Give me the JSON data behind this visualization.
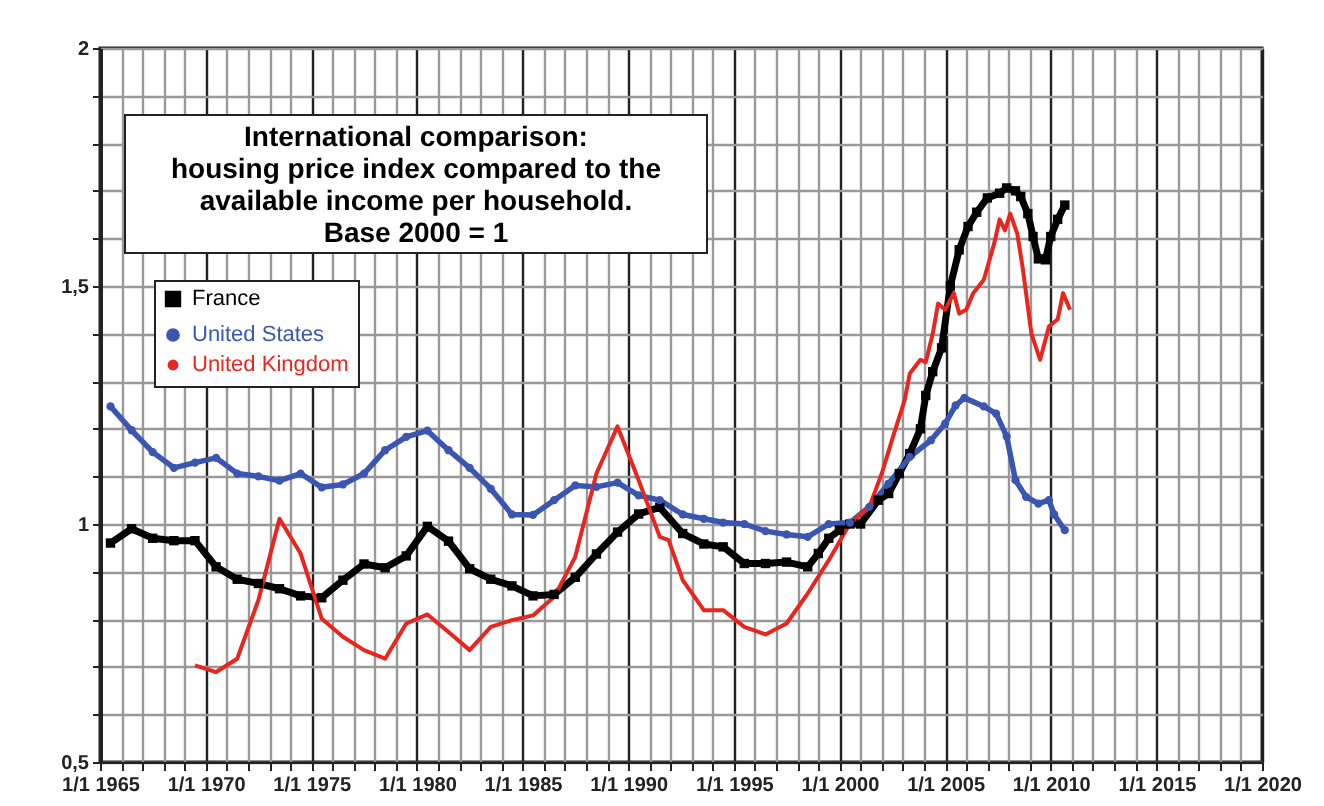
{
  "chart_data": {
    "type": "line",
    "title": "International comparison:\nhousing price index compared to the\navailable income per household.\nBase 2000 = 1",
    "xlim": [
      "1965-01-01",
      "2020-01-01"
    ],
    "ylim": [
      0.5,
      2
    ],
    "xticks": [
      {
        "value": "1965-01-01",
        "label": "1/1 1965"
      },
      {
        "value": "1966-01-01",
        "label": null
      },
      {
        "value": "1967-01-01",
        "label": null
      },
      {
        "value": "1968-01-01",
        "label": null
      },
      {
        "value": "1969-01-01",
        "label": null
      },
      {
        "value": "1970-01-01",
        "label": "1/1 1970"
      },
      {
        "value": "1971-01-01",
        "label": null
      },
      {
        "value": "1972-01-01",
        "label": null
      },
      {
        "value": "1973-01-01",
        "label": null
      },
      {
        "value": "1974-01-01",
        "label": null
      },
      {
        "value": "1975-01-01",
        "label": "1/1 1975"
      },
      {
        "value": "1976-01-01",
        "label": null
      },
      {
        "value": "1977-01-01",
        "label": null
      },
      {
        "value": "1978-01-01",
        "label": null
      },
      {
        "value": "1979-01-01",
        "label": null
      },
      {
        "value": "1980-01-01",
        "label": "1/1 1980"
      },
      {
        "value": "1981-01-01",
        "label": null
      },
      {
        "value": "1982-01-01",
        "label": null
      },
      {
        "value": "1983-01-01",
        "label": null
      },
      {
        "value": "1984-01-01",
        "label": null
      },
      {
        "value": "1985-01-01",
        "label": "1/1 1985"
      },
      {
        "value": "1986-01-01",
        "label": null
      },
      {
        "value": "1987-01-01",
        "label": null
      },
      {
        "value": "1988-01-01",
        "label": null
      },
      {
        "value": "1989-01-01",
        "label": null
      },
      {
        "value": "1990-01-01",
        "label": "1/1 1990"
      },
      {
        "value": "1991-01-01",
        "label": null
      },
      {
        "value": "1992-01-01",
        "label": null
      },
      {
        "value": "1993-01-01",
        "label": null
      },
      {
        "value": "1994-01-01",
        "label": null
      },
      {
        "value": "1995-01-01",
        "label": "1/1 1995"
      },
      {
        "value": "1996-01-01",
        "label": null
      },
      {
        "value": "1997-01-01",
        "label": null
      },
      {
        "value": "1998-01-01",
        "label": null
      },
      {
        "value": "1999-01-01",
        "label": null
      },
      {
        "value": "2000-01-01",
        "label": "1/1 2000"
      },
      {
        "value": "2001-01-01",
        "label": null
      },
      {
        "value": "2002-01-01",
        "label": null
      },
      {
        "value": "2003-01-01",
        "label": null
      },
      {
        "value": "2004-01-01",
        "label": null
      },
      {
        "value": "2005-01-01",
        "label": "1/1 2005"
      },
      {
        "value": "2006-01-01",
        "label": null
      },
      {
        "value": "2007-01-01",
        "label": null
      },
      {
        "value": "2008-01-01",
        "label": null
      },
      {
        "value": "2009-01-01",
        "label": null
      },
      {
        "value": "2010-01-01",
        "label": "1/1 2010"
      },
      {
        "value": "2011-01-01",
        "label": null
      },
      {
        "value": "2012-01-01",
        "label": null
      },
      {
        "value": "2013-01-01",
        "label": null
      },
      {
        "value": "2014-01-01",
        "label": null
      },
      {
        "value": "2015-01-01",
        "label": "1/1 2015"
      },
      {
        "value": "2016-01-01",
        "label": null
      },
      {
        "value": "2017-01-01",
        "label": null
      },
      {
        "value": "2018-01-01",
        "label": null
      },
      {
        "value": "2019-01-01",
        "label": null
      },
      {
        "value": "2020-01-01",
        "label": "1/1 2020"
      }
    ],
    "yticks": [
      {
        "value": 0.5,
        "label": "0,5"
      },
      {
        "value": 0.6,
        "label": null
      },
      {
        "value": 0.7,
        "label": null
      },
      {
        "value": 0.8,
        "label": null
      },
      {
        "value": 0.9,
        "label": null
      },
      1,
      {
        "value": 1.1,
        "label": null
      },
      {
        "value": 1.2,
        "label": null
      },
      {
        "value": 1.3,
        "label": null
      },
      {
        "value": 1.4,
        "label": null
      },
      {
        "value": 1.5,
        "label": "1,5"
      },
      {
        "value": 1.6,
        "label": null
      },
      {
        "value": 1.7,
        "label": null
      },
      {
        "value": 1.8,
        "label": null
      },
      {
        "value": 1.9,
        "label": null
      },
      2
    ],
    "grid": true,
    "legend": "top left",
    "series": [
      {
        "name": "France",
        "color": "#000000",
        "marker": "square",
        "x": [
          "1965-07",
          "1966-07",
          "1967-07",
          "1968-07",
          "1969-07",
          "1970-07",
          "1971-07",
          "1972-07",
          "1973-07",
          "1974-07",
          "1975-07",
          "1976-07",
          "1977-07",
          "1978-07",
          "1979-07",
          "1980-07",
          "1981-07",
          "1982-07",
          "1983-07",
          "1984-07",
          "1985-07",
          "1986-07",
          "1987-07",
          "1988-07",
          "1989-07",
          "1990-07",
          "1991-07",
          "1992-08",
          "1993-08",
          "1994-07",
          "1995-07",
          "1996-07",
          "1997-07",
          "1998-07",
          "1999-01",
          "1999-07",
          "2000-01",
          "2000-07",
          "2001-01",
          "2001-11",
          "2002-05",
          "2002-11",
          "2003-05",
          "2003-11",
          "2004-02",
          "2004-06",
          "2004-11",
          "2005-04",
          "2005-09",
          "2006-02",
          "2006-07",
          "2007-01",
          "2007-08",
          "2007-12",
          "2008-05",
          "2008-08",
          "2008-12",
          "2009-03",
          "2009-06",
          "2009-10",
          "2010-01",
          "2010-05",
          "2010-09"
        ],
        "values": [
          0.96,
          0.99,
          0.97,
          0.965,
          0.965,
          0.91,
          0.884,
          0.875,
          0.864,
          0.849,
          0.845,
          0.882,
          0.916,
          0.908,
          0.933,
          0.995,
          0.964,
          0.906,
          0.884,
          0.87,
          0.849,
          0.852,
          0.888,
          0.937,
          0.983,
          1.021,
          1.035,
          0.98,
          0.958,
          0.952,
          0.917,
          0.917,
          0.92,
          0.91,
          0.938,
          0.97,
          0.987,
          1.0,
          1.0,
          1.05,
          1.064,
          1.106,
          1.148,
          1.2,
          1.27,
          1.32,
          1.37,
          1.5,
          1.576,
          1.625,
          1.655,
          1.685,
          1.695,
          1.706,
          1.7,
          1.688,
          1.652,
          1.604,
          1.557,
          1.555,
          1.604,
          1.64,
          1.67
        ]
      },
      {
        "name": "United States",
        "color": "#3a56b0",
        "marker": "circle",
        "x": [
          "1965-07",
          "1966-07",
          "1967-07",
          "1968-07",
          "1969-07",
          "1970-07",
          "1971-07",
          "1972-07",
          "1973-07",
          "1974-07",
          "1975-07",
          "1976-07",
          "1977-07",
          "1978-07",
          "1979-07",
          "1980-07",
          "1981-07",
          "1982-07",
          "1983-07",
          "1984-07",
          "1985-07",
          "1986-07",
          "1987-07",
          "1988-07",
          "1989-07",
          "1990-07",
          "1991-07",
          "1992-08",
          "1993-08",
          "1994-07",
          "1995-07",
          "1996-07",
          "1997-07",
          "1998-07",
          "1999-07",
          "2000-07",
          "2001-06",
          "2002-05",
          "2003-05",
          "2004-05",
          "2005-01",
          "2005-07",
          "2005-12",
          "2006-11",
          "2007-06",
          "2007-12",
          "2008-05",
          "2008-11",
          "2009-06",
          "2009-12",
          "2010-03",
          "2010-09"
        ],
        "values": [
          1.247,
          1.197,
          1.151,
          1.118,
          1.129,
          1.139,
          1.106,
          1.1,
          1.091,
          1.106,
          1.077,
          1.083,
          1.106,
          1.155,
          1.183,
          1.196,
          1.155,
          1.118,
          1.074,
          1.02,
          1.019,
          1.05,
          1.081,
          1.078,
          1.087,
          1.06,
          1.05,
          1.02,
          1.011,
          1.003,
          1.0,
          0.985,
          0.978,
          0.973,
          1.0,
          1.003,
          1.036,
          1.085,
          1.141,
          1.176,
          1.211,
          1.249,
          1.265,
          1.247,
          1.232,
          1.184,
          1.092,
          1.057,
          1.043,
          1.05,
          1.02,
          0.987
        ]
      },
      {
        "name": "United Kingdom",
        "color": "#e8251f",
        "marker": "none",
        "x": [
          "1969-07",
          "1970-07",
          "1971-07",
          "1972-07",
          "1973-07",
          "1974-07",
          "1975-07",
          "1976-07",
          "1977-07",
          "1978-07",
          "1979-07",
          "1980-07",
          "1981-07",
          "1982-07",
          "1983-07",
          "1984-07",
          "1985-07",
          "1986-07",
          "1987-07",
          "1988-07",
          "1989-07",
          "1990-07",
          "1991-07",
          "1991-12",
          "1992-08",
          "1993-08",
          "1994-07",
          "1995-07",
          "1996-07",
          "1997-07",
          "1998-07",
          "1999-07",
          "2000-07",
          "2001-06",
          "2002-01",
          "2002-08",
          "2003-02",
          "2003-05",
          "2003-11",
          "2004-02",
          "2004-06",
          "2004-09",
          "2005-01",
          "2005-06",
          "2005-09",
          "2006-01",
          "2006-05",
          "2006-11",
          "2007-05",
          "2007-08",
          "2007-11",
          "2008-02",
          "2008-06",
          "2008-09",
          "2009-02",
          "2009-07",
          "2009-12",
          "2010-05",
          "2010-08",
          "2010-12"
        ],
        "values": [
          0.703,
          0.689,
          0.717,
          0.84,
          1.011,
          0.938,
          0.801,
          0.763,
          0.735,
          0.717,
          0.791,
          0.81,
          0.773,
          0.735,
          0.784,
          0.798,
          0.808,
          0.847,
          0.931,
          1.106,
          1.205,
          1.092,
          0.973,
          0.966,
          0.882,
          0.819,
          0.819,
          0.784,
          0.768,
          0.791,
          0.854,
          0.924,
          1.001,
          1.036,
          1.106,
          1.19,
          1.26,
          1.316,
          1.345,
          1.34,
          1.4,
          1.463,
          1.45,
          1.485,
          1.442,
          1.45,
          1.485,
          1.513,
          1.59,
          1.64,
          1.617,
          1.652,
          1.61,
          1.54,
          1.4,
          1.345,
          1.415,
          1.43,
          1.485,
          1.45
        ]
      }
    ]
  }
}
